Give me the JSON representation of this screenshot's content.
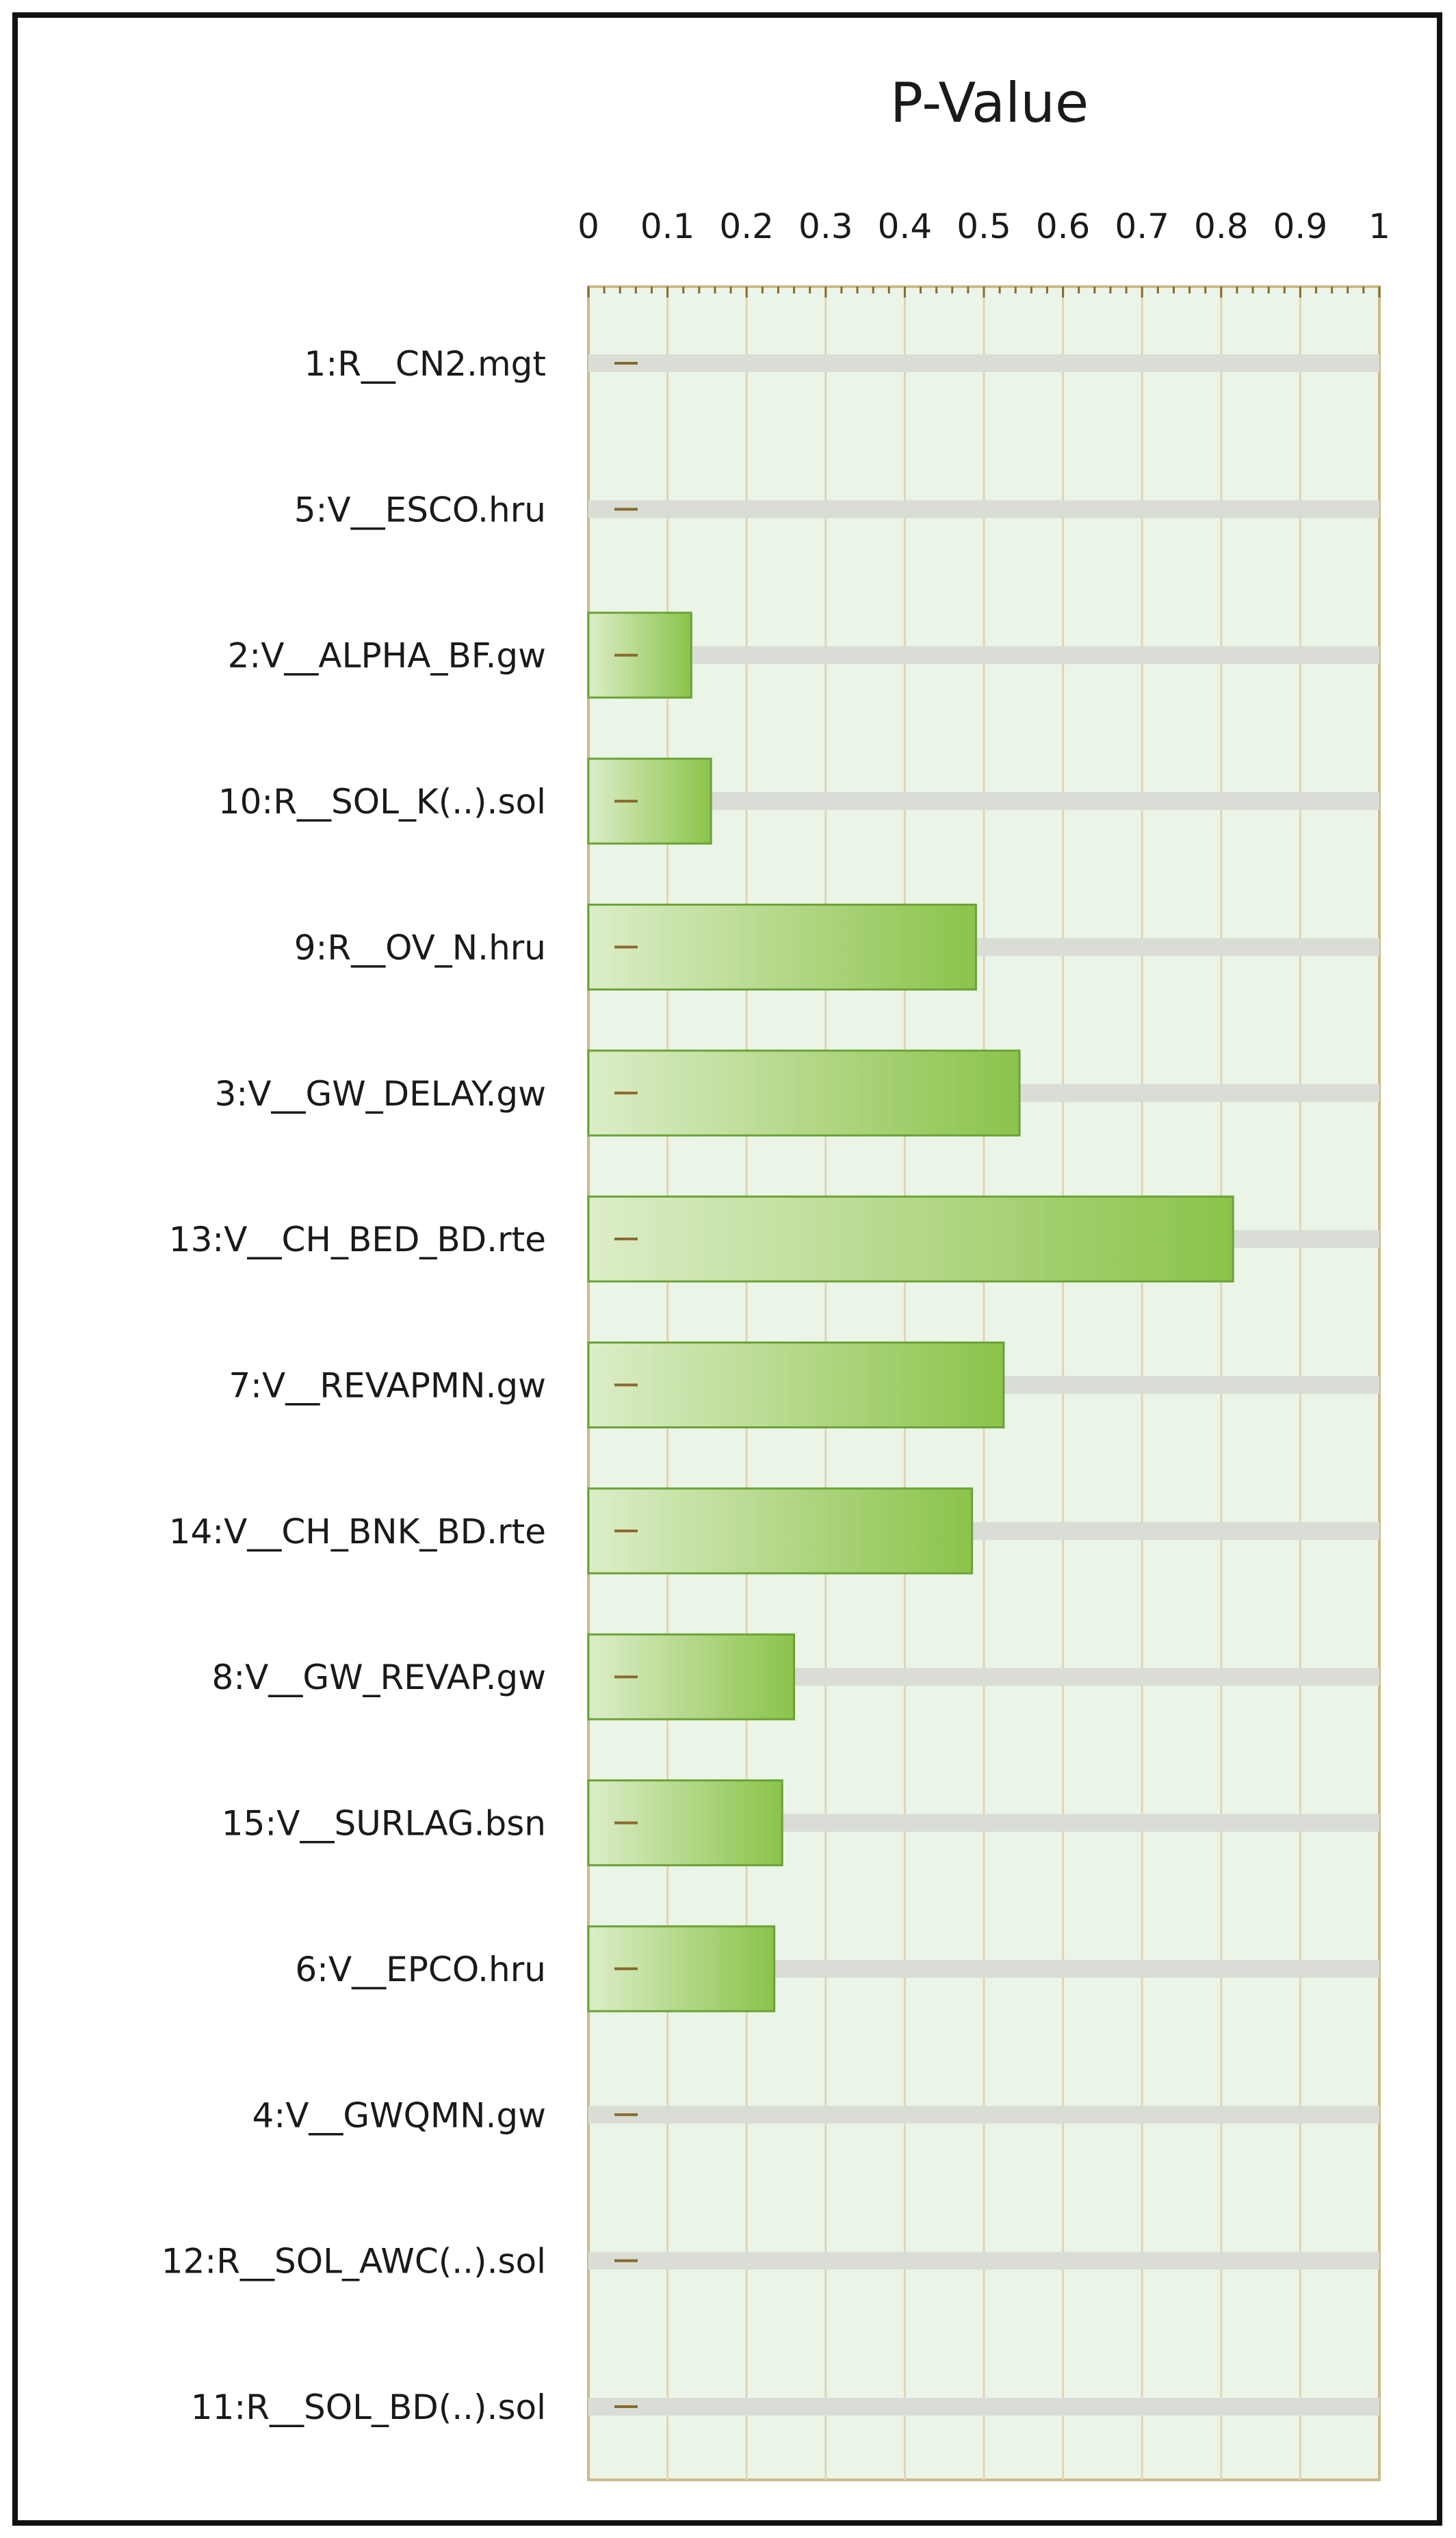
{
  "chart_data": {
    "type": "bar",
    "orientation": "horizontal",
    "title": "P-Value",
    "xlim": [
      0,
      1
    ],
    "xticks": [
      "0",
      "0.1",
      "0.2",
      "0.3",
      "0.4",
      "0.5",
      "0.6",
      "0.7",
      "0.8",
      "0.9",
      "1"
    ],
    "categories": [
      "1:R__CN2.mgt",
      "5:V__ESCO.hru",
      "2:V__ALPHA_BF.gw",
      "10:R__SOL_K(..).sol",
      "9:R__OV_N.hru",
      "3:V__GW_DELAY.gw",
      "13:V__CH_BED_BD.rte",
      "7:V__REVAPMN.gw",
      "14:V__CH_BNK_BD.rte",
      "8:V__GW_REVAP.gw",
      "15:V__SURLAG.bsn",
      "6:V__EPCO.hru",
      "4:V__GWQMN.gw",
      "12:R__SOL_AWC(..).sol",
      "11:R__SOL_BD(..).sol"
    ],
    "values": [
      0,
      0,
      0.13,
      0.155,
      0.49,
      0.545,
      0.815,
      0.525,
      0.485,
      0.26,
      0.245,
      0.235,
      0,
      0,
      0
    ],
    "grid": true,
    "colors": {
      "bar_light": "#dcedc8",
      "bar_dark": "#8bc34a",
      "bar_border": "#6aa336",
      "plot_bg": "#eaf5e8",
      "grid": "#e3d3b3",
      "track": "#d9ddd5",
      "axis": "#cdb98a",
      "tick_mark": "#8a6a2a"
    }
  }
}
